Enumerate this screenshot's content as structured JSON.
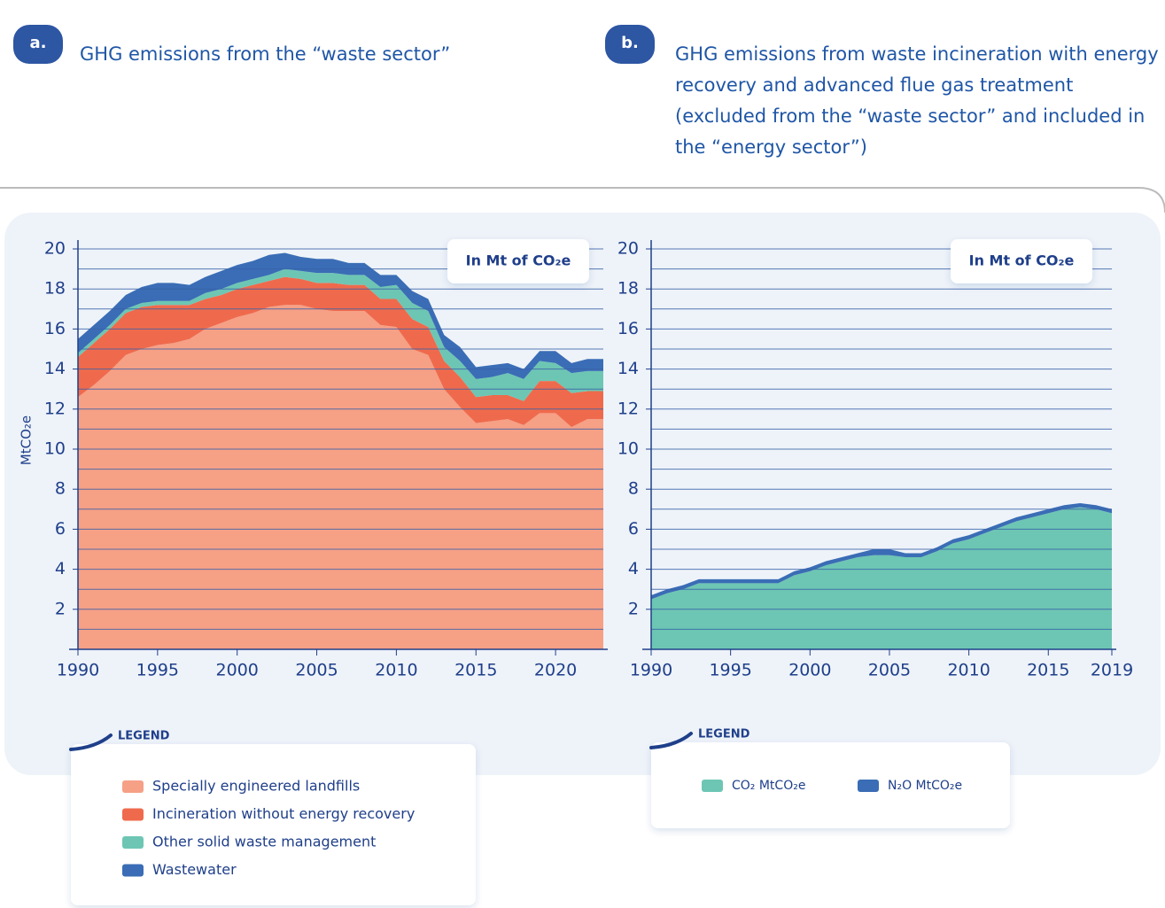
{
  "chart_data": [
    {
      "type": "area",
      "stacked": true,
      "panel_label": "a.",
      "title": "GHG emissions from the “waste sector”",
      "annotation": "In Mt of CO₂e",
      "ylabel": "MtCO₂e",
      "legend_title": "LEGEND",
      "x": [
        1990,
        1991,
        1992,
        1993,
        1994,
        1995,
        1996,
        1997,
        1998,
        1999,
        2000,
        2001,
        2002,
        2003,
        2004,
        2005,
        2006,
        2007,
        2008,
        2009,
        2010,
        2011,
        2012,
        2013,
        2014,
        2015,
        2016,
        2017,
        2018,
        2019,
        2020,
        2021,
        2022,
        2023
      ],
      "xlim": [
        1990,
        2023
      ],
      "xticks": [
        1990,
        1995,
        2000,
        2005,
        2010,
        2015,
        2020
      ],
      "ylim": [
        0,
        20
      ],
      "yticks": [
        2,
        4,
        6,
        8,
        10,
        12,
        14,
        16,
        18,
        20
      ],
      "minor_yticks": [
        1,
        3,
        5,
        7,
        9,
        11,
        13,
        15,
        17,
        19
      ],
      "grid": true,
      "series": [
        {
          "name": "Specially engineered landfills",
          "color": "#f6a086",
          "values": [
            12.6,
            13.2,
            13.9,
            14.7,
            15.0,
            15.2,
            15.3,
            15.5,
            16.0,
            16.3,
            16.6,
            16.8,
            17.1,
            17.2,
            17.2,
            17.0,
            16.9,
            16.9,
            16.9,
            16.2,
            16.1,
            15.0,
            14.7,
            13.0,
            12.1,
            11.3,
            11.4,
            11.5,
            11.2,
            11.8,
            11.8,
            11.1,
            11.5,
            11.5
          ]
        },
        {
          "name": "Incineration without energy recovery",
          "color": "#ef6a4c",
          "values": [
            2.0,
            2.1,
            2.1,
            2.1,
            2.1,
            2.0,
            1.9,
            1.7,
            1.5,
            1.4,
            1.4,
            1.4,
            1.3,
            1.4,
            1.3,
            1.3,
            1.4,
            1.3,
            1.3,
            1.3,
            1.4,
            1.5,
            1.4,
            1.4,
            1.5,
            1.3,
            1.3,
            1.2,
            1.2,
            1.6,
            1.6,
            1.7,
            1.4,
            1.4
          ]
        },
        {
          "name": "Other solid waste management",
          "color": "#6dc6b3",
          "values": [
            0.2,
            0.2,
            0.2,
            0.2,
            0.2,
            0.2,
            0.2,
            0.2,
            0.3,
            0.3,
            0.3,
            0.3,
            0.3,
            0.4,
            0.4,
            0.5,
            0.5,
            0.5,
            0.5,
            0.6,
            0.7,
            0.8,
            0.8,
            0.7,
            0.8,
            0.9,
            0.9,
            1.1,
            1.1,
            1.0,
            0.9,
            1.0,
            1.0,
            1.0
          ]
        },
        {
          "name": "Wastewater",
          "color": "#3a6db5",
          "values": [
            0.7,
            0.7,
            0.7,
            0.7,
            0.8,
            0.9,
            0.9,
            0.8,
            0.8,
            0.9,
            0.9,
            0.9,
            1.0,
            0.8,
            0.7,
            0.7,
            0.7,
            0.6,
            0.6,
            0.6,
            0.5,
            0.6,
            0.6,
            0.6,
            0.7,
            0.6,
            0.6,
            0.5,
            0.5,
            0.5,
            0.6,
            0.5,
            0.6,
            0.6
          ]
        }
      ]
    },
    {
      "type": "area",
      "stacked": true,
      "panel_label": "b.",
      "title": "GHG emissions from waste incineration with energy recovery and advanced flue gas treatment (excluded from the “waste sector” and included in the “energy sector”)",
      "annotation": "In Mt of CO₂e",
      "legend_title": "LEGEND",
      "x": [
        1990,
        1991,
        1992,
        1993,
        1994,
        1995,
        1996,
        1997,
        1998,
        1999,
        2000,
        2001,
        2002,
        2003,
        2004,
        2005,
        2006,
        2007,
        2008,
        2009,
        2010,
        2011,
        2012,
        2013,
        2014,
        2015,
        2016,
        2017,
        2018,
        2019
      ],
      "xlim": [
        1990,
        2019
      ],
      "xticks": [
        1990,
        1995,
        2000,
        2005,
        2010,
        2015,
        2019
      ],
      "ylim": [
        0,
        20
      ],
      "yticks": [
        2,
        4,
        6,
        8,
        10,
        12,
        14,
        16,
        18,
        20
      ],
      "minor_yticks": [
        1,
        3,
        5,
        7,
        9,
        11,
        13,
        15,
        17,
        19
      ],
      "grid": true,
      "series": [
        {
          "name": "CO₂ MtCO₂e",
          "color": "#6dc6b3",
          "values": [
            2.5,
            2.8,
            3.0,
            3.3,
            3.3,
            3.3,
            3.3,
            3.3,
            3.3,
            3.7,
            3.9,
            4.2,
            4.4,
            4.6,
            4.7,
            4.7,
            4.6,
            4.6,
            4.9,
            5.3,
            5.5,
            5.8,
            6.1,
            6.4,
            6.6,
            6.8,
            7.0,
            7.1,
            7.0,
            6.8
          ]
        },
        {
          "name": "N₂O MtCO₂e",
          "color": "#3a6db5",
          "values": [
            0.2,
            0.2,
            0.2,
            0.2,
            0.2,
            0.2,
            0.2,
            0.2,
            0.2,
            0.2,
            0.2,
            0.2,
            0.2,
            0.2,
            0.3,
            0.3,
            0.2,
            0.2,
            0.2,
            0.2,
            0.2,
            0.2,
            0.2,
            0.2,
            0.2,
            0.2,
            0.2,
            0.2,
            0.2,
            0.2
          ]
        }
      ]
    }
  ]
}
